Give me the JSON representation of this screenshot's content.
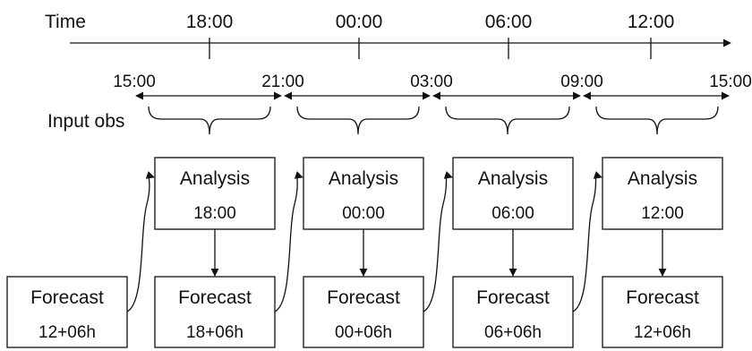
{
  "axis": {
    "label": "Time",
    "ticks": [
      "18:00",
      "00:00",
      "06:00",
      "12:00"
    ]
  },
  "windows": {
    "boundaries": [
      "15:00",
      "21:00",
      "03:00",
      "09:00",
      "15:00"
    ]
  },
  "input_label": "Input obs",
  "analyses": [
    {
      "title": "Analysis",
      "time": "18:00"
    },
    {
      "title": "Analysis",
      "time": "00:00"
    },
    {
      "title": "Analysis",
      "time": "06:00"
    },
    {
      "title": "Analysis",
      "time": "12:00"
    }
  ],
  "forecasts": [
    {
      "title": "Forecast",
      "time": "12+06h"
    },
    {
      "title": "Forecast",
      "time": "18+06h"
    },
    {
      "title": "Forecast",
      "time": "00+06h"
    },
    {
      "title": "Forecast",
      "time": "06+06h"
    },
    {
      "title": "Forecast",
      "time": "12+06h"
    }
  ]
}
